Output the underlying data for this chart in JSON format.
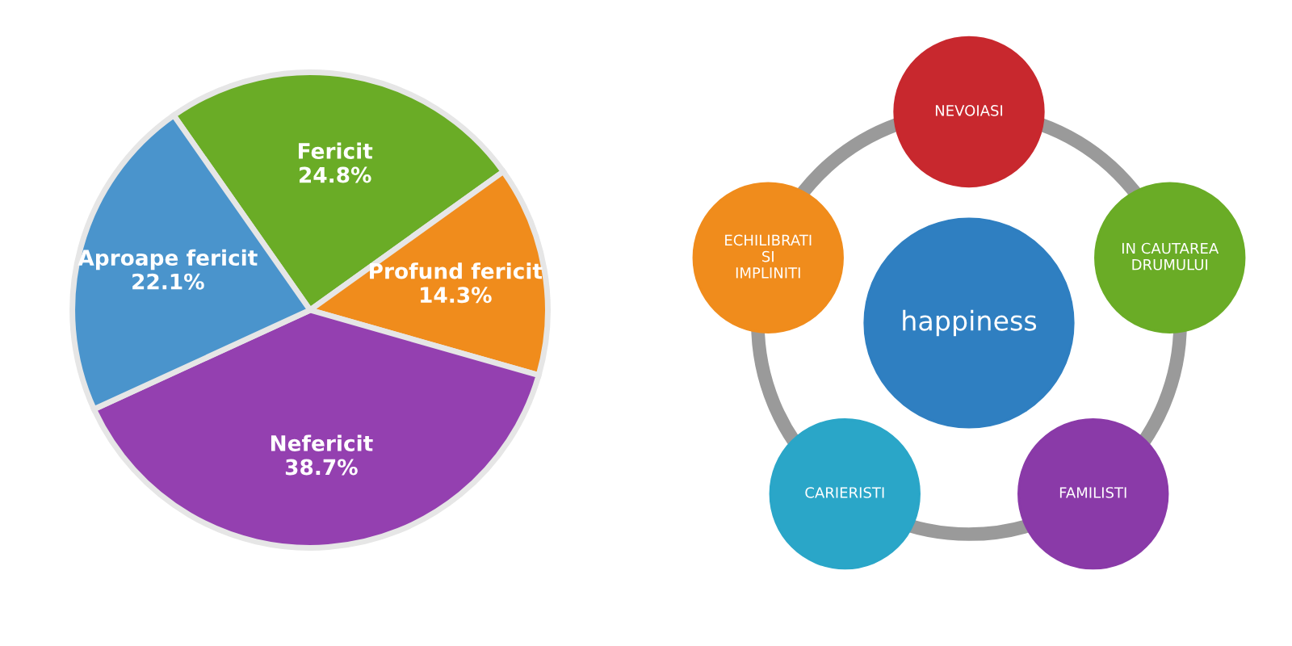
{
  "chart_data": [
    {
      "type": "pie",
      "categories": [
        "Fericit",
        "Profund fericit",
        "Nefericit",
        "Aproape fericit"
      ],
      "values": [
        24.8,
        14.3,
        38.7,
        22.1
      ],
      "value_labels": [
        "24.8%",
        "14.3%",
        "38.7%",
        "22.1%"
      ],
      "colors": [
        "#6aac26",
        "#f08c1c",
        "#9440b0",
        "#4a94cc"
      ]
    },
    {
      "type": "other",
      "annotations": [
        "happiness",
        "NEVOIASI",
        "IN CAUTAREA DRUMULUI",
        "FAMILISTI",
        "CARIERISTI",
        "ECHILIBRATI SI IMPLINITI"
      ]
    }
  ]
}
